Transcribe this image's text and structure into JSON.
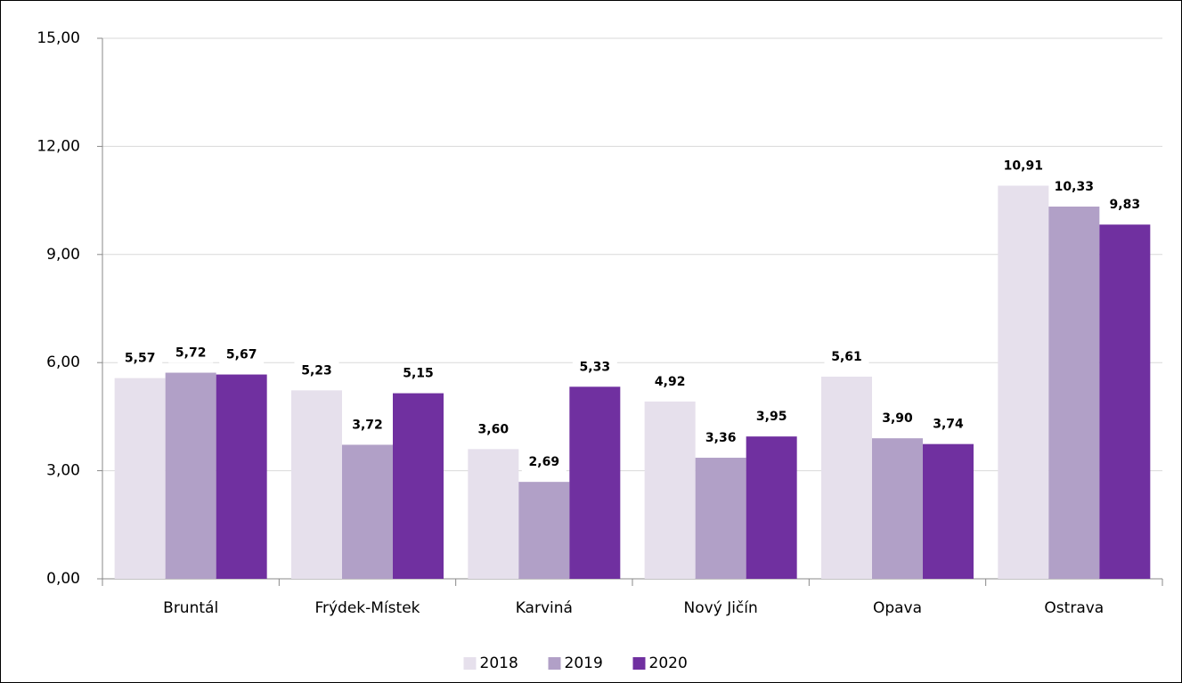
{
  "chart_data": {
    "type": "bar",
    "categories": [
      "Bruntál",
      "Frýdek-Místek",
      "Karviná",
      "Nový Jičín",
      "Opava",
      "Ostrava"
    ],
    "series": [
      {
        "name": "2018",
        "color": "#e6e0ec",
        "values": [
          5.57,
          5.23,
          3.6,
          4.92,
          5.61,
          10.91
        ],
        "value_labels": [
          "5,57",
          "5,23",
          "3,60",
          "4,92",
          "5,61",
          "10,91"
        ]
      },
      {
        "name": "2019",
        "color": "#b1a0c7",
        "values": [
          5.72,
          3.72,
          2.69,
          3.36,
          3.9,
          10.33
        ],
        "value_labels": [
          "5,72",
          "3,72",
          "2,69",
          "3,36",
          "3,90",
          "10,33"
        ]
      },
      {
        "name": "2020",
        "color": "#7030a0",
        "values": [
          5.67,
          5.15,
          5.33,
          3.95,
          3.74,
          9.83
        ],
        "value_labels": [
          "5,67",
          "5,15",
          "5,33",
          "3,95",
          "3,74",
          "9,83"
        ]
      }
    ],
    "ylim": [
      0,
      15
    ],
    "yticks": [
      {
        "value": 0,
        "label": "0,00"
      },
      {
        "value": 3,
        "label": "3,00"
      },
      {
        "value": 6,
        "label": "6,00"
      },
      {
        "value": 9,
        "label": "9,00"
      },
      {
        "value": 12,
        "label": "12,00"
      },
      {
        "value": 15,
        "label": "15,00"
      }
    ],
    "grid": true,
    "legend": "bottom"
  }
}
